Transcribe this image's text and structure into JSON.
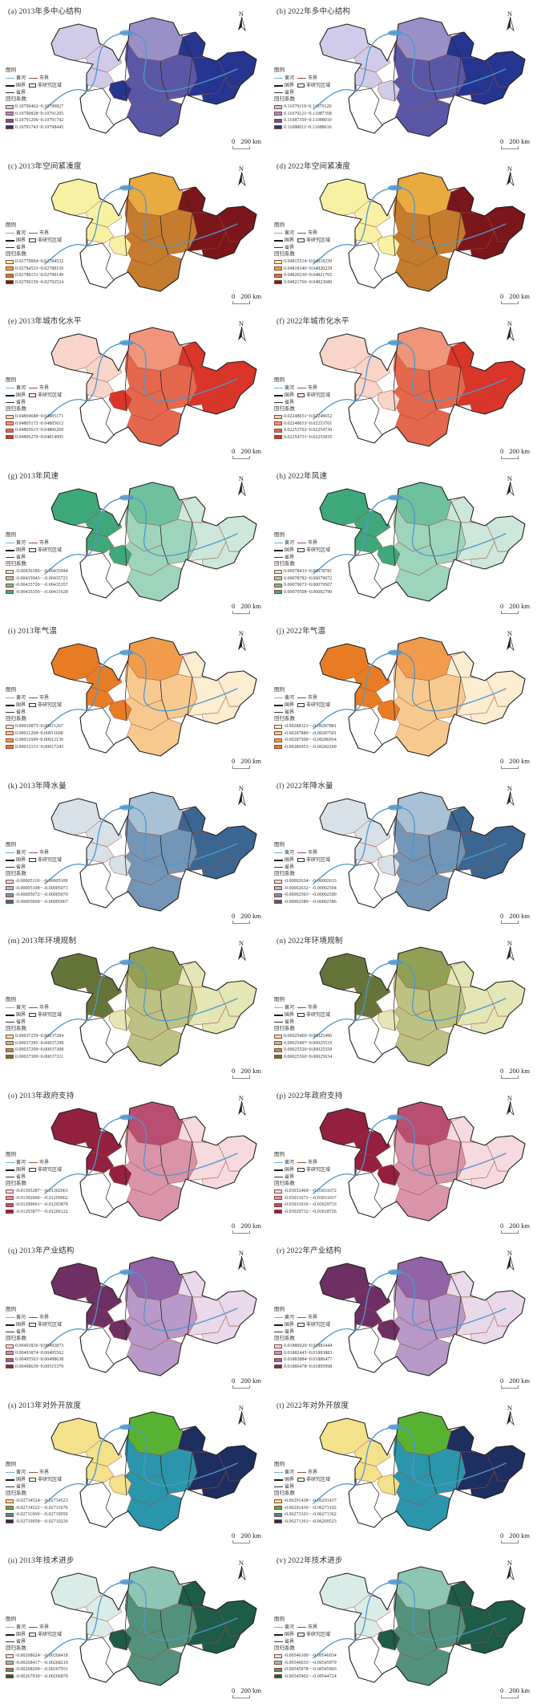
{
  "shared": {
    "north_label": "N",
    "legend_title": "图例",
    "river_label": "黄河",
    "city_boundary_label": "市界",
    "national_boundary_label": "国界",
    "non_study_label": "非研究区域",
    "province_boundary_label": "省界",
    "coef_label": "回归系数",
    "scale_zero": "0",
    "scale_distance": "200 km",
    "river_color": "#4f97cc",
    "city_boundary_color": "#9a4b38",
    "outline_color": "#1f1f1f"
  },
  "panels": [
    {
      "id": "a",
      "title": "(a) 2013年多中心结构",
      "shade": "asc",
      "hotspot_class": 3,
      "classes": [
        {
          "color": "#cfcbe8",
          "range": "0.10790462~0.10790827"
        },
        {
          "color": "#9a90c8",
          "range": "0.10790828~0.10791205"
        },
        {
          "color": "#5a58a6",
          "range": "0.10791206~0.10791742"
        },
        {
          "color": "#24368f",
          "range": "0.10791743~0.10798445"
        }
      ]
    },
    {
      "id": "b",
      "title": "(b) 2022年多中心结构",
      "shade": "asc",
      "hotspot_class": 0,
      "classes": [
        {
          "color": "#cfcbe8",
          "range": "0.11079119~0.11079120"
        },
        {
          "color": "#9a90c8",
          "range": "0.11079121~0.11087358"
        },
        {
          "color": "#5a58a6",
          "range": "0.11087359~0.11088010"
        },
        {
          "color": "#24368f",
          "range": "0.11088011~0.11088616"
        }
      ]
    },
    {
      "id": "c",
      "title": "(c) 2013年空间紧凑度",
      "shade": "asc",
      "hotspot_class": 0,
      "classes": [
        {
          "color": "#f8f1a3",
          "range": "0.02779004~0.02784532"
        },
        {
          "color": "#e9aa40",
          "range": "0.02784533~0.02788150"
        },
        {
          "color": "#c57c2e",
          "range": "0.02788151~0.02790149"
        },
        {
          "color": "#7b161a",
          "range": "0.02790150~0.02792524"
        }
      ]
    },
    {
      "id": "d",
      "title": "(d) 2022年空间紧凑度",
      "shade": "asc",
      "hotspot_class": 0,
      "classes": [
        {
          "color": "#f8f1a3",
          "range": "0.04815514~0.04818339"
        },
        {
          "color": "#e9aa40",
          "range": "0.04818340~0.04820229"
        },
        {
          "color": "#c57c2e",
          "range": "0.04820230~0.04821765"
        },
        {
          "color": "#7b161a",
          "range": "0.04821766~0.04823680"
        }
      ]
    },
    {
      "id": "e",
      "title": "(e) 2013年城市化水平",
      "shade": "asc",
      "hotspot_class": 3,
      "classes": [
        {
          "color": "#f9d4c8",
          "range": "0.04804688~0.04805171"
        },
        {
          "color": "#f0957a",
          "range": "0.04805172~0.04805612"
        },
        {
          "color": "#e5684e",
          "range": "0.04805613~0.04806269"
        },
        {
          "color": "#d93529",
          "range": "0.04806270~0.04814995"
        }
      ]
    },
    {
      "id": "f",
      "title": "(f) 2022年城市化水平",
      "shade": "asc",
      "hotspot_class": 0,
      "classes": [
        {
          "color": "#f9d4c8",
          "range": "0.02248651~0.02248652"
        },
        {
          "color": "#f0957a",
          "range": "0.02248653~0.02253701"
        },
        {
          "color": "#e5684e",
          "range": "0.02253702~0.02254730"
        },
        {
          "color": "#d93529",
          "range": "0.02254731~0.02255835"
        }
      ]
    },
    {
      "id": "g",
      "title": "(g) 2013年风速",
      "shade": "desc",
      "hotspot_class": 3,
      "classes": [
        {
          "color": "#cde8da",
          "range": "-0.00436186~ -0.00435944"
        },
        {
          "color": "#9ed4bb",
          "range": "-0.00435943~ -0.00435721"
        },
        {
          "color": "#6fc09d",
          "range": "-0.00435720~ -0.00435357"
        },
        {
          "color": "#3ea87b",
          "range": "-0.00435356~ -0.00431628"
        }
      ]
    },
    {
      "id": "h",
      "title": "(h) 2022年风速",
      "shade": "desc",
      "hotspot_class": 3,
      "classes": [
        {
          "color": "#cde8da",
          "range": "0.00078433~0.00078781"
        },
        {
          "color": "#9ed4bb",
          "range": "0.00078782~0.00079072"
        },
        {
          "color": "#6fc09d",
          "range": "0.00079073~0.00079507"
        },
        {
          "color": "#3ea87b",
          "range": "0.00079508~0.00082790"
        }
      ]
    },
    {
      "id": "i",
      "title": "(i) 2013年气温",
      "shade": "desc",
      "hotspot_class": 3,
      "classes": [
        {
          "color": "#fdedd0",
          "range": "0.00010875~0.00011267"
        },
        {
          "color": "#f8c98f",
          "range": "0.00011268~0.00011608"
        },
        {
          "color": "#f19c4c",
          "range": "0.00011609~0.00012130"
        },
        {
          "color": "#e87c24",
          "range": "0.00012131~0.00017243"
        }
      ]
    },
    {
      "id": "j",
      "title": "(j) 2022年气温",
      "shade": "desc",
      "hotspot_class": 3,
      "classes": [
        {
          "color": "#fdedd0",
          "range": "-0.00288321~ -0.00287881"
        },
        {
          "color": "#f8c98f",
          "range": "-0.00287880~ -0.00287501"
        },
        {
          "color": "#f19c4c",
          "range": "-0.00287500~ -0.00286954"
        },
        {
          "color": "#e87c24",
          "range": "-0.00286953~ -0.00282200"
        }
      ]
    },
    {
      "id": "k",
      "title": "(k) 2013年降水量",
      "shade": "asc",
      "hotspot_class": 0,
      "classes": [
        {
          "color": "#d8e0e8",
          "range": "-0.00005110~ -0.00005109"
        },
        {
          "color": "#a8c1d5",
          "range": "-0.00005108~ -0.00005073"
        },
        {
          "color": "#7396b6",
          "range": "-0.00005072~ -0.00005070"
        },
        {
          "color": "#3a6691",
          "range": "-0.00005069~ -0.00005067"
        }
      ]
    },
    {
      "id": "l",
      "title": "(l) 2022年降水量",
      "shade": "asc",
      "hotspot_class": 0,
      "classes": [
        {
          "color": "#d8e0e8",
          "range": "-0.00002634~ -0.00002633"
        },
        {
          "color": "#a8c1d5",
          "range": "-0.00002632~ -0.00002594"
        },
        {
          "color": "#7396b6",
          "range": "-0.00002593~ -0.00002590"
        },
        {
          "color": "#3a6691",
          "range": "-0.00002589~ -0.00002586"
        }
      ]
    },
    {
      "id": "m",
      "title": "(m) 2013年环境规制",
      "shade": "desc",
      "hotspot_class": 0,
      "classes": [
        {
          "color": "#e5e6b5",
          "range": "0.00037259~0.00037284"
        },
        {
          "color": "#bcc283",
          "range": "0.00037285~0.00037298"
        },
        {
          "color": "#92a056",
          "range": "0.00037299~0.00037308"
        },
        {
          "color": "#657539",
          "range": "0.00037309~0.00037321"
        }
      ]
    },
    {
      "id": "n",
      "title": "(n) 2022年环境规制",
      "shade": "desc",
      "hotspot_class": 0,
      "classes": [
        {
          "color": "#e5e6b5",
          "range": "0.00025469~0.00025496"
        },
        {
          "color": "#bcc283",
          "range": "0.00025497~0.00025519"
        },
        {
          "color": "#92a056",
          "range": "0.00025520~0.00025559"
        },
        {
          "color": "#657539",
          "range": "0.00025560~0.00025634"
        }
      ]
    },
    {
      "id": "o",
      "title": "(o) 2013年政府支持",
      "shade": "desc",
      "hotspot_class": 3,
      "classes": [
        {
          "color": "#f7d9e0",
          "range": "-0.01305287~ -0.01302061"
        },
        {
          "color": "#da94a9",
          "range": "-0.01302060~ -0.01299062"
        },
        {
          "color": "#b84e72",
          "range": "-0.01299061~ -0.01293878"
        },
        {
          "color": "#93203f",
          "range": "-0.01293877~ -0.01206122"
        }
      ]
    },
    {
      "id": "p",
      "title": "(p) 2022年政府支持",
      "shade": "desc",
      "hotspot_class": 3,
      "classes": [
        {
          "color": "#f7d9e0",
          "range": "-0.03032469~ -0.03031672"
        },
        {
          "color": "#da94a9",
          "range": "-0.03031671~ -0.03031017"
        },
        {
          "color": "#b84e72",
          "range": "-0.03031016~ -0.03029733"
        },
        {
          "color": "#93203f",
          "range": "-0.03029732~ -0.03018726"
        }
      ]
    },
    {
      "id": "q",
      "title": "(q) 2013年产业结构",
      "shade": "desc",
      "hotspot_class": 3,
      "classes": [
        {
          "color": "#ead9ea",
          "range": "0.00491836~0.00493873"
        },
        {
          "color": "#b899c8",
          "range": "0.00493874~0.00495562"
        },
        {
          "color": "#8f63a5",
          "range": "0.00495563~0.00498638"
        },
        {
          "color": "#6e3063",
          "range": "0.00498639~0.00515379"
        }
      ]
    },
    {
      "id": "r",
      "title": "(r) 2022年产业结构",
      "shade": "desc",
      "hotspot_class": 3,
      "classes": [
        {
          "color": "#ead9ea",
          "range": "0.01880620~0.01882444"
        },
        {
          "color": "#b899c8",
          "range": "0.01882445~0.01883883"
        },
        {
          "color": "#8f63a5",
          "range": "0.01883884~0.01886477"
        },
        {
          "color": "#6e3063",
          "range": "0.01886478~0.01895998"
        }
      ]
    },
    {
      "id": "s",
      "title": "(s) 2013年对外开放度",
      "shade": "asc",
      "hotspot_class": 0,
      "classes": [
        {
          "color": "#f3e18b",
          "range": "-0.02734524~ -0.02734523"
        },
        {
          "color": "#57b232",
          "range": "-0.02734522~ -0.02711670"
        },
        {
          "color": "#2b96ab",
          "range": "-0.02711669~ -0.02710959"
        },
        {
          "color": "#1d2e60",
          "range": "-0.02710958~ -0.02710236"
        }
      ]
    },
    {
      "id": "t",
      "title": "(t) 2022年对外开放度",
      "shade": "asc",
      "hotspot_class": 0,
      "classes": [
        {
          "color": "#f3e18b",
          "range": "-0.06291438~ -0.06291437"
        },
        {
          "color": "#57b232",
          "range": "-0.06291436~ -0.06273102"
        },
        {
          "color": "#2b96ab",
          "range": "-0.06273101~ -0.06271362"
        },
        {
          "color": "#1d2e60",
          "range": "-0.06271361~ -0.06269523"
        }
      ]
    },
    {
      "id": "u",
      "title": "(u) 2013年技术进步",
      "shade": "asc",
      "hotspot_class": 3,
      "classes": [
        {
          "color": "#daece7",
          "range": "-0.00268624~ -0.00268418"
        },
        {
          "color": "#8fc5b4",
          "range": "-0.00268417~ -0.00268210"
        },
        {
          "color": "#54917c",
          "range": "-0.00268209~ -0.00267931"
        },
        {
          "color": "#1e5b49",
          "range": "-0.00267930~ -0.00266870"
        }
      ]
    },
    {
      "id": "v",
      "title": "(v) 2022年技术进步",
      "shade": "asc",
      "hotspot_class": 3,
      "classes": [
        {
          "color": "#daece7",
          "range": "-0.00546100~ -0.00546034"
        },
        {
          "color": "#8fc5b4",
          "range": "-0.00546033~ -0.00545979"
        },
        {
          "color": "#54917c",
          "range": "-0.00545978~ -0.00545903"
        },
        {
          "color": "#1e5b49",
          "range": "-0.00545902~ -0.00544724"
        }
      ]
    }
  ]
}
